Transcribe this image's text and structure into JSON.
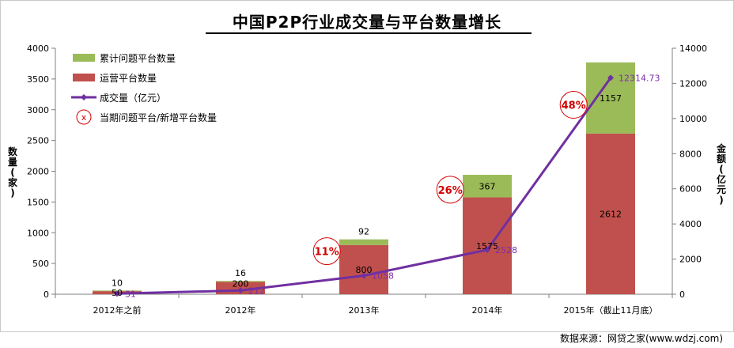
{
  "chart_data": {
    "type": "bar",
    "title": "中国P2P行业成交量与平台数量增长",
    "categories": [
      "2012年之前",
      "2012年",
      "2013年",
      "2014年",
      "2015年（截止11月底）"
    ],
    "series": [
      {
        "name": "运营平台数量",
        "type": "bar",
        "axis": "left",
        "stack": "platforms",
        "color": "#c0504d",
        "values": [
          50,
          200,
          800,
          1575,
          2612
        ]
      },
      {
        "name": "累计问题平台数量",
        "type": "bar",
        "axis": "left",
        "stack": "platforms",
        "color": "#9bbb59",
        "values": [
          10,
          16,
          92,
          367,
          1157
        ]
      },
      {
        "name": "成交量（亿元）",
        "type": "line",
        "axis": "right",
        "color": "#7030a0",
        "values": [
          31,
          212,
          1058,
          2528,
          12314.73
        ]
      }
    ],
    "value_labels": {
      "operating": [
        "50",
        "200",
        "800",
        "1575",
        "2612"
      ],
      "problem": [
        "10",
        "16",
        "92",
        "367",
        "1157"
      ],
      "volume": [
        "31",
        "212",
        "1058",
        "2528",
        "12314.73"
      ]
    },
    "annotations": [
      {
        "text": "11%",
        "category_index": 1.7,
        "y_left": 700
      },
      {
        "text": "26%",
        "category_index": 2.7,
        "y_left": 1700
      },
      {
        "text": "48%",
        "category_index": 3.7,
        "y_left": 3080
      }
    ],
    "legend_marker_text": "x",
    "legend": [
      {
        "label": "累计问题平台数量",
        "kind": "bar",
        "color": "#9bbb59"
      },
      {
        "label": "运营平台数量",
        "kind": "bar",
        "color": "#c0504d"
      },
      {
        "label": "成交量（亿元）",
        "kind": "line",
        "color": "#7030a0"
      },
      {
        "label": "当期问题平台/新增平台数量",
        "kind": "circle",
        "color": "#d40000"
      }
    ],
    "left_axis": {
      "label": "数量(家)",
      "min": 0,
      "max": 4000,
      "step": 500,
      "ticks": [
        "0",
        "500",
        "1000",
        "1500",
        "2000",
        "2500",
        "3000",
        "3500",
        "4000"
      ]
    },
    "right_axis": {
      "label": "金额(亿元)",
      "min": 0,
      "max": 14000,
      "step": 2000,
      "ticks": [
        "0",
        "2000",
        "4000",
        "6000",
        "8000",
        "10000",
        "12000",
        "14000"
      ]
    },
    "legend_placement": "top-left",
    "grid": false
  },
  "footer": {
    "source": "数据来源：网贷之家(www.wdzj.com)"
  }
}
